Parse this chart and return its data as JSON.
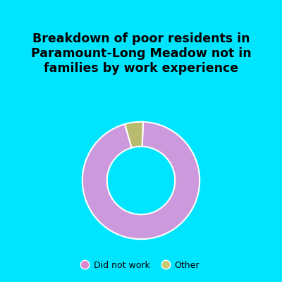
{
  "title": "Breakdown of poor residents in\nParamount-Long Meadow not in\nfamilies by work experience",
  "slices": [
    95.0,
    5.0
  ],
  "labels": [
    "Did not work",
    "Other"
  ],
  "colors": [
    "#cc99dd",
    "#b8bb6e"
  ],
  "legend_colors": [
    "#dd88cc",
    "#c8c870"
  ],
  "bg_top_color": "#00e5ff",
  "bg_chart_color": "#ddeedd",
  "title_fontsize": 12.5,
  "title_fontweight": "bold",
  "start_angle": 88
}
